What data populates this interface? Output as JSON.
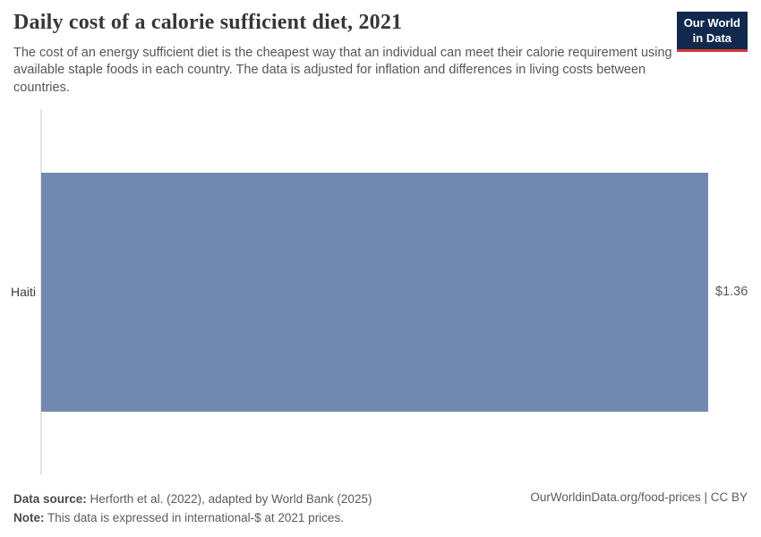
{
  "header": {
    "title": "Daily cost of a calorie sufficient diet, 2021",
    "subtitle": "The cost of an energy sufficient diet is the cheapest way that an individual can meet their calorie requirement using available staple foods in each country. The data is adjusted for inflation and differences in living costs between countries.",
    "logo": {
      "line1": "Our World",
      "line2": "in Data"
    }
  },
  "chart_data": {
    "type": "bar",
    "orientation": "horizontal",
    "title": "Daily cost of a calorie sufficient diet, 2021",
    "categories": [
      "Haiti"
    ],
    "values": [
      1.36
    ],
    "value_labels": [
      "$1.36"
    ],
    "unit": "international-$",
    "xlabel": "",
    "ylabel": "",
    "xlim": [
      0,
      1.36
    ],
    "grid": false,
    "legend": "none"
  },
  "footer": {
    "data_source_label": "Data source:",
    "data_source": " Herforth et al. (2022), adapted by World Bank (2025)",
    "note_label": "Note:",
    "note": " This data is expressed in international-$ at 2021 prices.",
    "link": "OurWorldinData.org/food-prices | CC BY"
  },
  "colors": {
    "bar": "#7189ae",
    "logo_bg": "#12294e",
    "logo_stripe": "#d7352e",
    "axis_line": "#e3e3e3",
    "title_text": "#373737",
    "body_text": "#565656"
  }
}
